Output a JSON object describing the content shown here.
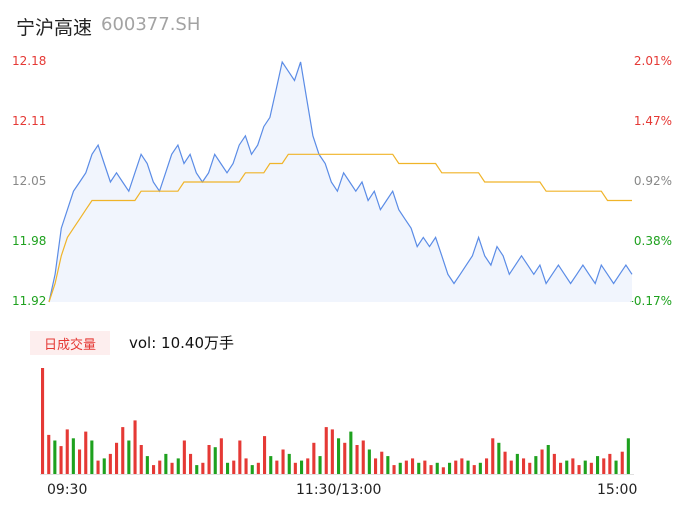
{
  "header": {
    "name": "宁沪高速",
    "code": "600377.SH"
  },
  "price_axis": [
    "12.18",
    "12.11",
    "12.05",
    "11.98",
    "11.92"
  ],
  "pct_axis": [
    "2.01%",
    "1.47%",
    "0.92%",
    "0.38%",
    "-0.17%"
  ],
  "volume": {
    "tag": "日成交量",
    "text": "vol: 10.40万手"
  },
  "time_axis": [
    "09:30",
    "11:30/13:00",
    "15:00"
  ],
  "colors": {
    "up": "#e53935",
    "down": "#1ea11e",
    "price": "#5b8ce6",
    "avg": "#f0b429"
  },
  "chart_data": {
    "type": "line",
    "ylim": [
      11.92,
      12.18
    ],
    "series": [
      {
        "values": [
          11.92,
          11.95,
          12.0,
          12.02,
          12.04,
          12.05,
          12.06,
          12.08,
          12.09,
          12.07,
          12.05,
          12.06,
          12.05,
          12.04,
          12.06,
          12.08,
          12.07,
          12.05,
          12.04,
          12.06,
          12.08,
          12.09,
          12.07,
          12.08,
          12.06,
          12.05,
          12.06,
          12.08,
          12.07,
          12.06,
          12.07,
          12.09,
          12.1,
          12.08,
          12.09,
          12.11,
          12.12,
          12.15,
          12.18,
          12.17,
          12.16,
          12.18,
          12.14,
          12.1,
          12.08,
          12.07,
          12.05,
          12.04,
          12.06,
          12.05,
          12.04,
          12.05,
          12.03,
          12.04,
          12.02,
          12.03,
          12.04,
          12.02,
          12.01,
          12.0,
          11.98,
          11.99,
          11.98,
          11.99,
          11.97,
          11.95,
          11.94,
          11.95,
          11.96,
          11.97,
          11.99,
          11.97,
          11.96,
          11.98,
          11.97,
          11.95,
          11.96,
          11.97,
          11.96,
          11.95,
          11.96,
          11.94,
          11.95,
          11.96,
          11.95,
          11.94,
          11.95,
          11.96,
          11.95,
          11.94,
          11.96,
          11.95,
          11.94,
          11.95,
          11.96,
          11.95
        ]
      },
      {
        "values": [
          11.92,
          11.94,
          11.97,
          11.99,
          12.0,
          12.01,
          12.02,
          12.03,
          12.03,
          12.03,
          12.03,
          12.03,
          12.03,
          12.03,
          12.03,
          12.04,
          12.04,
          12.04,
          12.04,
          12.04,
          12.04,
          12.04,
          12.05,
          12.05,
          12.05,
          12.05,
          12.05,
          12.05,
          12.05,
          12.05,
          12.05,
          12.05,
          12.06,
          12.06,
          12.06,
          12.06,
          12.07,
          12.07,
          12.07,
          12.08,
          12.08,
          12.08,
          12.08,
          12.08,
          12.08,
          12.08,
          12.08,
          12.08,
          12.08,
          12.08,
          12.08,
          12.08,
          12.08,
          12.08,
          12.08,
          12.08,
          12.08,
          12.07,
          12.07,
          12.07,
          12.07,
          12.07,
          12.07,
          12.07,
          12.06,
          12.06,
          12.06,
          12.06,
          12.06,
          12.06,
          12.06,
          12.05,
          12.05,
          12.05,
          12.05,
          12.05,
          12.05,
          12.05,
          12.05,
          12.05,
          12.05,
          12.04,
          12.04,
          12.04,
          12.04,
          12.04,
          12.04,
          12.04,
          12.04,
          12.04,
          12.04,
          12.03,
          12.03,
          12.03,
          12.03,
          12.03
        ]
      }
    ],
    "volume_values": [
      95,
      35,
      30,
      25,
      40,
      32,
      22,
      38,
      30,
      12,
      14,
      18,
      28,
      42,
      30,
      48,
      26,
      16,
      8,
      12,
      18,
      10,
      14,
      30,
      18,
      8,
      10,
      26,
      24,
      32,
      10,
      12,
      30,
      14,
      8,
      10,
      34,
      16,
      12,
      22,
      18,
      10,
      12,
      14,
      28,
      16,
      42,
      40,
      32,
      28,
      38,
      26,
      30,
      22,
      14,
      20,
      16,
      8,
      10,
      12,
      14,
      10,
      12,
      8,
      10,
      6,
      10,
      12,
      14,
      12,
      8,
      10,
      14,
      32,
      28,
      20,
      12,
      18,
      14,
      10,
      16,
      22,
      26,
      18,
      10,
      12,
      14,
      8,
      12,
      10,
      16,
      14,
      18,
      12,
      20,
      32
    ],
    "volume_up": [
      1,
      1,
      0,
      1,
      1,
      0,
      1,
      1,
      0,
      1,
      0,
      1,
      1,
      1,
      0,
      1,
      1,
      0,
      1,
      1,
      0,
      1,
      0,
      1,
      1,
      0,
      1,
      1,
      0,
      1,
      0,
      1,
      1,
      1,
      0,
      1,
      1,
      0,
      1,
      1,
      0,
      1,
      0,
      1,
      1,
      0,
      1,
      1,
      0,
      1,
      0,
      1,
      1,
      0,
      1,
      1,
      0,
      1,
      0,
      1,
      1,
      0,
      1,
      1,
      0,
      1,
      0,
      1,
      1,
      0,
      1,
      0,
      1,
      1,
      0,
      1,
      1,
      0,
      1,
      1,
      0,
      1,
      0,
      1,
      1,
      0,
      1,
      1,
      0,
      1,
      0,
      1,
      1,
      0,
      1,
      0
    ]
  }
}
